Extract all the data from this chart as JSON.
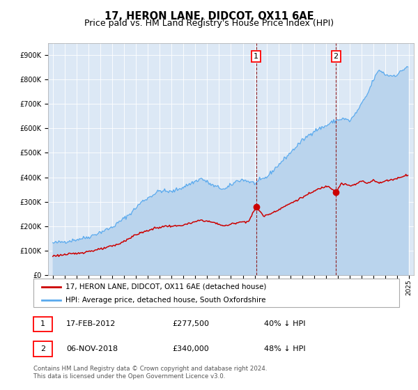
{
  "title": "17, HERON LANE, DIDCOT, OX11 6AE",
  "subtitle": "Price paid vs. HM Land Registry's House Price Index (HPI)",
  "ylim": [
    0,
    950000
  ],
  "yticks": [
    0,
    100000,
    200000,
    300000,
    400000,
    500000,
    600000,
    700000,
    800000,
    900000
  ],
  "ytick_labels": [
    "£0",
    "£100K",
    "£200K",
    "£300K",
    "£400K",
    "£500K",
    "£600K",
    "£700K",
    "£800K",
    "£900K"
  ],
  "bg_color": "#dce8f5",
  "hpi_color": "#5aaaee",
  "hpi_fill_color": "#bad4ed",
  "price_color": "#cc0000",
  "vline_color": "#880000",
  "sale1_date": 2012.12,
  "sale1_price": 277500,
  "sale2_date": 2018.84,
  "sale2_price": 340000,
  "legend_label_price": "17, HERON LANE, DIDCOT, OX11 6AE (detached house)",
  "legend_label_hpi": "HPI: Average price, detached house, South Oxfordshire",
  "note1_date": "17-FEB-2012",
  "note1_price": "£277,500",
  "note1_pct": "40% ↓ HPI",
  "note2_date": "06-NOV-2018",
  "note2_price": "£340,000",
  "note2_pct": "48% ↓ HPI",
  "footer": "Contains HM Land Registry data © Crown copyright and database right 2024.\nThis data is licensed under the Open Government Licence v3.0.",
  "title_fontsize": 10.5,
  "subtitle_fontsize": 9,
  "tick_fontsize": 7,
  "legend_fontsize": 7.5,
  "table_fontsize": 8,
  "footer_fontsize": 6.2
}
